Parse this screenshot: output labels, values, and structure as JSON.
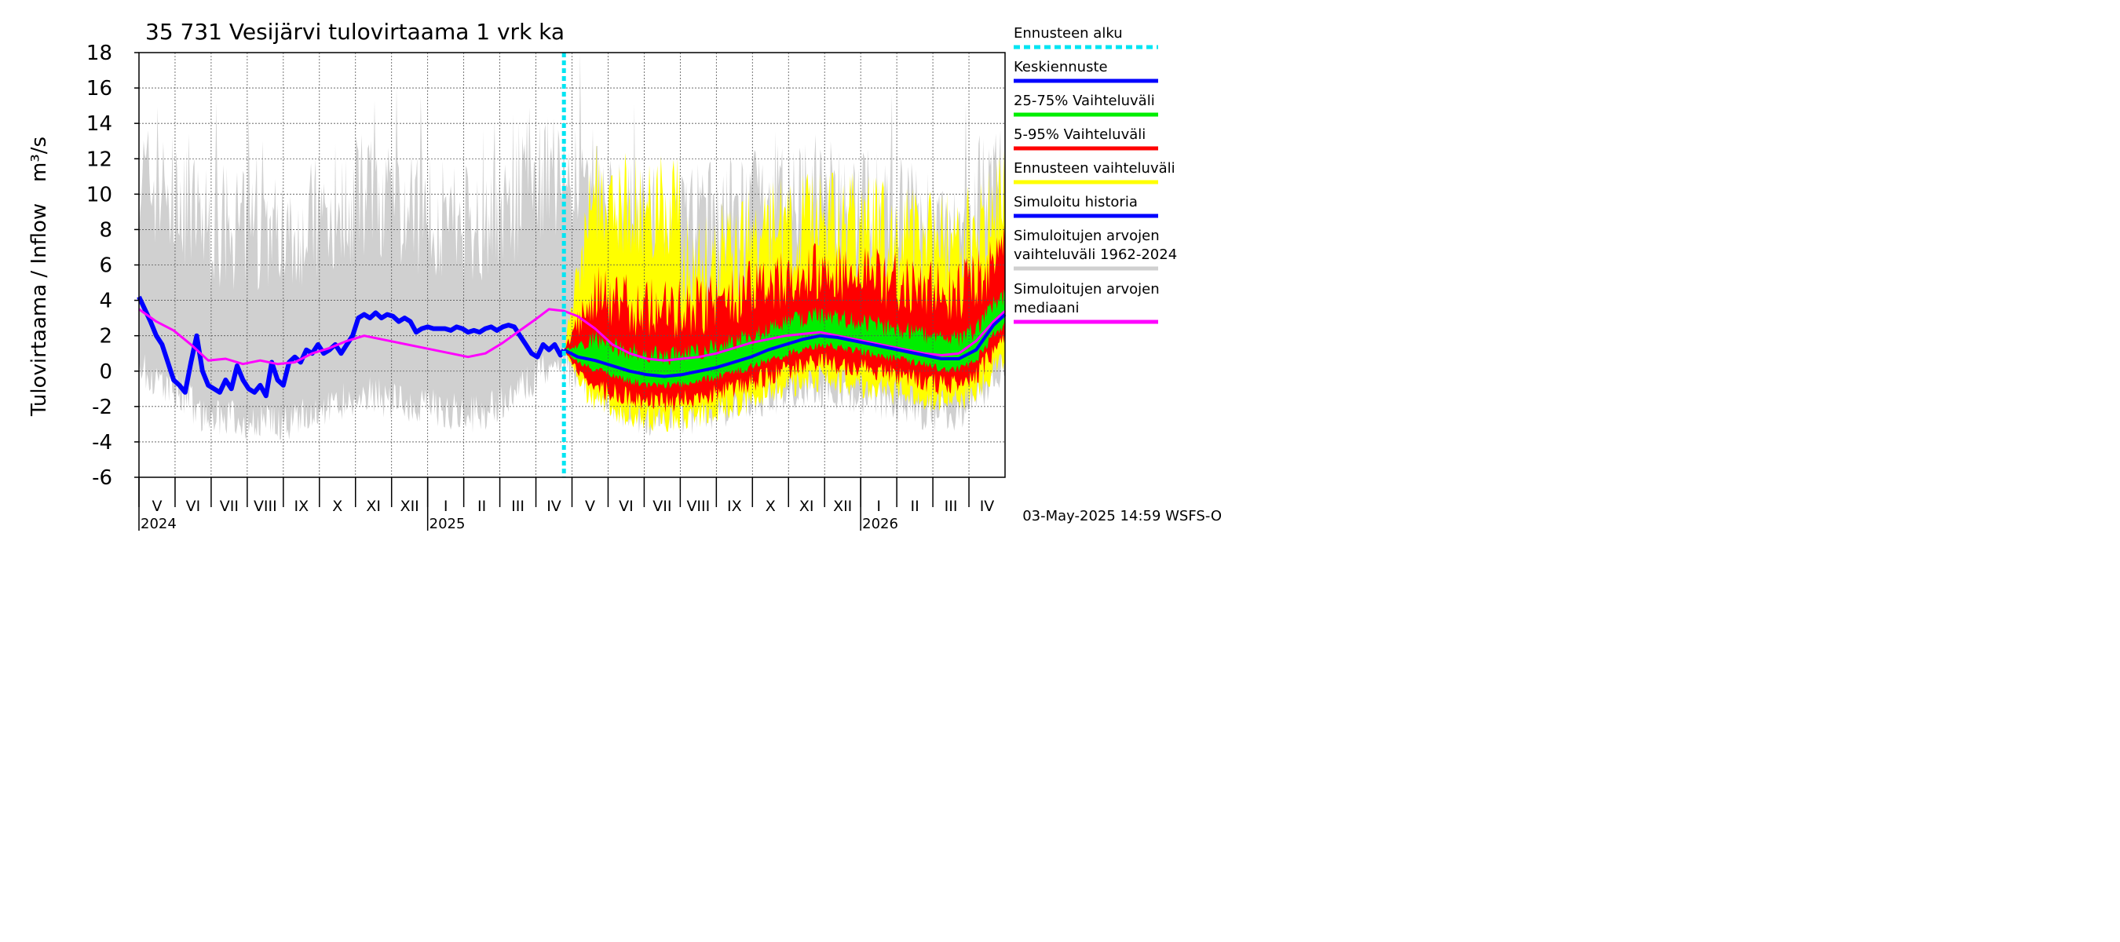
{
  "chart_data": {
    "type": "area",
    "title": "35 731 Vesijärvi tulovirtaama 1 vrk ka",
    "ylabel_main": "Tulovirtaama / Inflow",
    "ylabel_unit": "m³/s",
    "ylim": [
      -6,
      18
    ],
    "yticks": [
      "-6",
      "-4",
      "-2",
      "0",
      "2",
      "4",
      "6",
      "8",
      "10",
      "12",
      "14",
      "16",
      "18"
    ],
    "grid": true,
    "x_months": [
      "V",
      "VI",
      "VII",
      "VIII",
      "IX",
      "X",
      "XI",
      "XII",
      "I",
      "II",
      "III",
      "IV",
      "V",
      "VI",
      "VII",
      "VIII",
      "IX",
      "X",
      "XI",
      "XII",
      "I",
      "II",
      "III",
      "IV"
    ],
    "x_years": [
      "2024",
      "2025",
      "2026"
    ],
    "forecast_start": "2025-05-03",
    "legend": [
      {
        "label": "Ennusteen alku",
        "color": "#00e5f2",
        "dashed": true
      },
      {
        "label": "Keskiennuste",
        "color": "#0000ff"
      },
      {
        "label": "25-75% Vaihteluväli",
        "color": "#00ee00"
      },
      {
        "label": "5-95% Vaihteluväli",
        "color": "#ff0000"
      },
      {
        "label": "Ennusteen vaihteluväli",
        "color": "#ffff00"
      },
      {
        "label": "Simuloitu historia",
        "color": "#0000ff"
      },
      {
        "label": "Simuloitujen arvojen vaihteluväli 1962-2024",
        "lines": [
          "Simuloitujen arvojen",
          "vaihteluväli 1962-2024"
        ],
        "color": "#d0d0d0"
      },
      {
        "label": "Simuloitujen arvojen mediaani",
        "lines": [
          "Simuloitujen arvojen",
          "mediaani"
        ],
        "color": "#ff00ff"
      }
    ],
    "series": [
      {
        "name": "Simuloitu historia",
        "unit": "m³/s",
        "points": [
          [
            0,
            4.2
          ],
          [
            5,
            3.5
          ],
          [
            10,
            2.8
          ],
          [
            15,
            2.0
          ],
          [
            20,
            1.5
          ],
          [
            25,
            0.5
          ],
          [
            30,
            -0.5
          ],
          [
            35,
            -0.8
          ],
          [
            40,
            -1.2
          ],
          [
            45,
            0.5
          ],
          [
            50,
            2.0
          ],
          [
            55,
            0.0
          ],
          [
            60,
            -0.8
          ],
          [
            65,
            -1.0
          ],
          [
            70,
            -1.2
          ],
          [
            75,
            -0.5
          ],
          [
            80,
            -1.0
          ],
          [
            85,
            0.3
          ],
          [
            90,
            -0.5
          ],
          [
            95,
            -1.0
          ],
          [
            100,
            -1.2
          ],
          [
            105,
            -0.8
          ],
          [
            110,
            -1.4
          ],
          [
            115,
            0.5
          ],
          [
            120,
            -0.5
          ],
          [
            125,
            -0.8
          ],
          [
            130,
            0.5
          ],
          [
            135,
            0.8
          ],
          [
            140,
            0.5
          ],
          [
            145,
            1.2
          ],
          [
            150,
            1.0
          ],
          [
            155,
            1.5
          ],
          [
            160,
            1.0
          ],
          [
            165,
            1.2
          ],
          [
            170,
            1.5
          ],
          [
            175,
            1.0
          ],
          [
            180,
            1.5
          ],
          [
            185,
            2.0
          ],
          [
            190,
            3.0
          ],
          [
            195,
            3.2
          ],
          [
            200,
            3.0
          ],
          [
            205,
            3.3
          ],
          [
            210,
            3.0
          ],
          [
            215,
            3.2
          ],
          [
            220,
            3.1
          ],
          [
            225,
            2.8
          ],
          [
            230,
            3.0
          ],
          [
            235,
            2.8
          ],
          [
            240,
            2.2
          ],
          [
            245,
            2.4
          ],
          [
            250,
            2.5
          ],
          [
            255,
            2.4
          ],
          [
            260,
            2.4
          ],
          [
            265,
            2.4
          ],
          [
            270,
            2.3
          ],
          [
            275,
            2.5
          ],
          [
            280,
            2.4
          ],
          [
            285,
            2.2
          ],
          [
            290,
            2.3
          ],
          [
            295,
            2.2
          ],
          [
            300,
            2.4
          ],
          [
            305,
            2.5
          ],
          [
            310,
            2.3
          ],
          [
            315,
            2.5
          ],
          [
            320,
            2.6
          ],
          [
            325,
            2.5
          ],
          [
            330,
            2.0
          ],
          [
            335,
            1.5
          ],
          [
            340,
            1.0
          ],
          [
            345,
            0.8
          ],
          [
            350,
            1.5
          ],
          [
            355,
            1.2
          ],
          [
            360,
            1.5
          ],
          [
            365,
            0.9
          ],
          [
            368,
            1.2
          ]
        ]
      },
      {
        "name": "Simuloitujen arvojen mediaani",
        "unit": "m³/s",
        "points": [
          [
            0,
            3.5
          ],
          [
            15,
            2.8
          ],
          [
            30,
            2.3
          ],
          [
            45,
            1.5
          ],
          [
            60,
            0.6
          ],
          [
            75,
            0.7
          ],
          [
            90,
            0.4
          ],
          [
            105,
            0.6
          ],
          [
            120,
            0.4
          ],
          [
            135,
            0.5
          ],
          [
            150,
            1.0
          ],
          [
            165,
            1.3
          ],
          [
            180,
            1.7
          ],
          [
            195,
            2.0
          ],
          [
            210,
            1.8
          ],
          [
            225,
            1.6
          ],
          [
            240,
            1.4
          ],
          [
            255,
            1.2
          ],
          [
            270,
            1.0
          ],
          [
            285,
            0.8
          ],
          [
            300,
            1.0
          ],
          [
            315,
            1.6
          ],
          [
            330,
            2.3
          ],
          [
            345,
            3.0
          ],
          [
            355,
            3.5
          ],
          [
            368,
            3.4
          ],
          [
            380,
            3.1
          ],
          [
            395,
            2.4
          ],
          [
            410,
            1.5
          ],
          [
            425,
            1.0
          ],
          [
            440,
            0.7
          ],
          [
            455,
            0.6
          ],
          [
            470,
            0.7
          ],
          [
            485,
            0.8
          ],
          [
            500,
            1.0
          ],
          [
            515,
            1.3
          ],
          [
            530,
            1.6
          ],
          [
            545,
            1.8
          ],
          [
            560,
            2.0
          ],
          [
            575,
            2.1
          ],
          [
            590,
            2.2
          ],
          [
            605,
            2.0
          ],
          [
            620,
            1.8
          ],
          [
            635,
            1.6
          ],
          [
            650,
            1.4
          ],
          [
            665,
            1.2
          ],
          [
            680,
            1.0
          ],
          [
            695,
            0.9
          ],
          [
            710,
            1.0
          ],
          [
            725,
            1.7
          ],
          [
            740,
            2.8
          ],
          [
            750,
            3.4
          ]
        ]
      },
      {
        "name": "Keskiennuste",
        "unit": "m³/s",
        "points": [
          [
            368,
            1.2
          ],
          [
            380,
            0.8
          ],
          [
            395,
            0.6
          ],
          [
            410,
            0.3
          ],
          [
            425,
            0.0
          ],
          [
            440,
            -0.2
          ],
          [
            455,
            -0.3
          ],
          [
            470,
            -0.2
          ],
          [
            485,
            0.0
          ],
          [
            500,
            0.2
          ],
          [
            515,
            0.5
          ],
          [
            530,
            0.8
          ],
          [
            545,
            1.2
          ],
          [
            560,
            1.5
          ],
          [
            575,
            1.8
          ],
          [
            590,
            2.0
          ],
          [
            605,
            1.9
          ],
          [
            620,
            1.7
          ],
          [
            635,
            1.5
          ],
          [
            650,
            1.3
          ],
          [
            665,
            1.1
          ],
          [
            680,
            0.9
          ],
          [
            695,
            0.7
          ],
          [
            710,
            0.7
          ],
          [
            725,
            1.2
          ],
          [
            740,
            2.6
          ],
          [
            750,
            3.2
          ]
        ]
      }
    ]
  },
  "footer": {
    "timestamp": "03-May-2025 14:59 WSFS-O"
  }
}
